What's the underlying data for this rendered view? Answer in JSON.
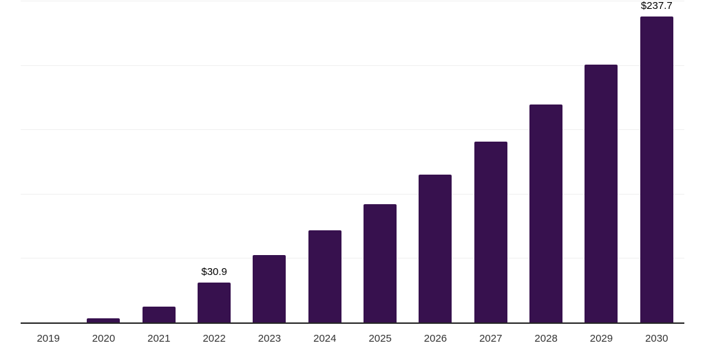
{
  "chart": {
    "background": "#ffffff",
    "bar_color": "#37114E",
    "axis_color": "#262626",
    "gridline_color": "#f0f0f0",
    "tick_label_color": "#333333",
    "value_label_color": "#000000"
  },
  "chart_data": {
    "type": "bar",
    "categories": [
      "2019",
      "2020",
      "2021",
      "2022",
      "2023",
      "2024",
      "2025",
      "2026",
      "2027",
      "2028",
      "2029",
      "2030"
    ],
    "values": [
      0,
      3.0,
      12.4,
      30.9,
      52.2,
      71.4,
      91.8,
      114.6,
      140.7,
      169.1,
      200.5,
      237.7
    ],
    "value_labels": [
      "",
      "",
      "",
      "$30.9",
      "",
      "",
      "",
      "",
      "",
      "",
      "",
      "$237.7"
    ],
    "title": "",
    "xlabel": "",
    "ylabel": "",
    "ylim": [
      0,
      250
    ],
    "grid": true,
    "gridline_step": 50,
    "y_tick_labels_visible": false,
    "legend": "none"
  }
}
